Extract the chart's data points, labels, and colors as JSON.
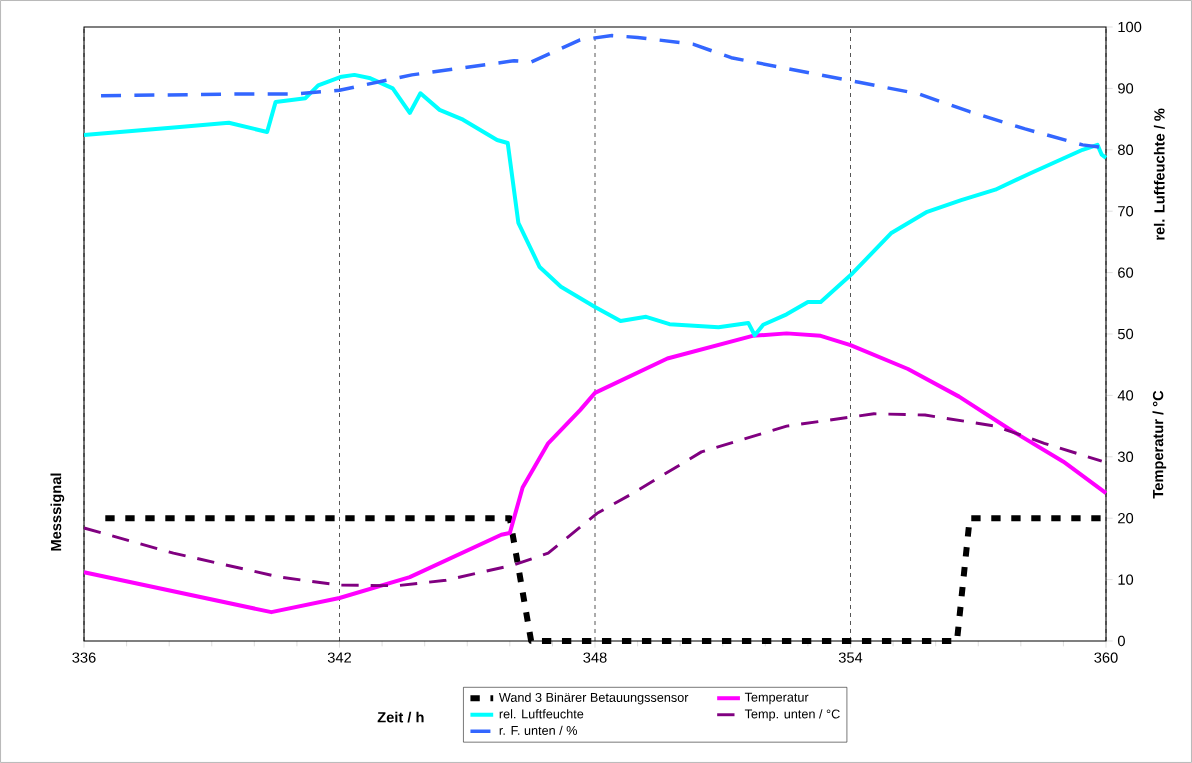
{
  "chart_data": {
    "type": "line",
    "xlabel": "Zeit / h",
    "ylabel": "Messsignal",
    "y2label": "rel. Luftfeuchte / %",
    "annotations": [
      "Temperatur / °C"
    ],
    "xlim": [
      336,
      360
    ],
    "xticks": [
      336,
      342,
      348,
      354,
      360
    ],
    "ylim": [
      0,
      100
    ],
    "yticks": [
      0,
      10,
      20,
      30,
      40,
      50,
      60,
      70,
      80,
      90,
      100
    ],
    "grid": "x",
    "legend": "bottom",
    "marker": "none",
    "series": [
      {
        "name": "Wand 3 Binärer Betauungssensor",
        "color": "#000000",
        "line_style": "dashed",
        "x": [
          336.5,
          346,
          346.5,
          356.5,
          356.8,
          360
        ],
        "values": [
          20,
          20,
          0,
          0,
          20,
          20
        ]
      },
      {
        "name": "Temperatur",
        "color": "#ff00ff",
        "line_style": "solid",
        "x": [
          336,
          340.4,
          342,
          343.65,
          345.8,
          346,
          346.3,
          346.9,
          347.65,
          348,
          349.7,
          351.7,
          352.5,
          353.3,
          354,
          355.35,
          356.55,
          357.8,
          359,
          360
        ],
        "values": [
          11.2,
          4.7,
          7,
          10.4,
          17.3,
          17.6,
          25,
          32.2,
          37.6,
          40.4,
          46,
          49.7,
          50.1,
          49.7,
          48.2,
          44.3,
          39.8,
          34.2,
          29.2,
          24.1
        ]
      },
      {
        "name": "rel. Luftfeuchte",
        "color": "#00ffff",
        "line_style": "solid",
        "x": [
          336,
          338.25,
          339.4,
          340.3,
          340.5,
          341.2,
          341.5,
          342.05,
          342.35,
          342.7,
          343.25,
          343.65,
          343.9,
          344.35,
          344.9,
          345.7,
          345.95,
          346.2,
          346.7,
          347.2,
          348,
          348.6,
          349.2,
          349.75,
          350.9,
          351.6,
          351.75,
          351.95,
          352.5,
          353,
          353.3,
          354.05,
          354.95,
          355.8,
          356.6,
          357.4,
          358.2,
          359.45,
          359.8,
          359.9,
          360
        ],
        "values": [
          82.4,
          83.7,
          84.4,
          82.9,
          87.8,
          88.4,
          90.5,
          91.9,
          92.2,
          91.7,
          90,
          86,
          89.2,
          86.5,
          84.9,
          81.6,
          81.1,
          68.1,
          60.9,
          57.7,
          54.4,
          52.1,
          52.8,
          51.6,
          51.1,
          51.8,
          49.8,
          51.5,
          53.2,
          55.2,
          55.2,
          59.9,
          66.4,
          69.9,
          71.8,
          73.5,
          76.1,
          80,
          80.8,
          79.2,
          78.7
        ]
      },
      {
        "name": "Temp. unten / °C",
        "color": "#800080",
        "line_style": "dashed",
        "x": [
          336,
          338.1,
          340.6,
          342,
          343.35,
          344.5,
          346.1,
          346.9,
          348.05,
          348.9,
          350.5,
          352.5,
          354.55,
          355.75,
          357.4,
          358.55,
          359.9
        ],
        "values": [
          18.4,
          14.3,
          10.4,
          9.1,
          9,
          9.9,
          12.4,
          14.3,
          20.8,
          24.1,
          30.8,
          35,
          37,
          36.8,
          35,
          32.2,
          29.3
        ]
      },
      {
        "name": "r. F. unten / %",
        "color": "#3366ff",
        "line_style": "dashed",
        "x": [
          336.4,
          339.8,
          341,
          342,
          343.7,
          346.1,
          346.5,
          347.65,
          348.4,
          349,
          350.3,
          351.2,
          352.9,
          354.2,
          355.6,
          356.8,
          358.1,
          359.45,
          360
        ],
        "values": [
          88.8,
          89.1,
          89.1,
          89.7,
          92.2,
          94.5,
          94.3,
          97.9,
          98.6,
          98.3,
          97.2,
          95,
          92.7,
          91,
          89.1,
          86.2,
          83.4,
          80.8,
          80.3
        ]
      }
    ]
  }
}
